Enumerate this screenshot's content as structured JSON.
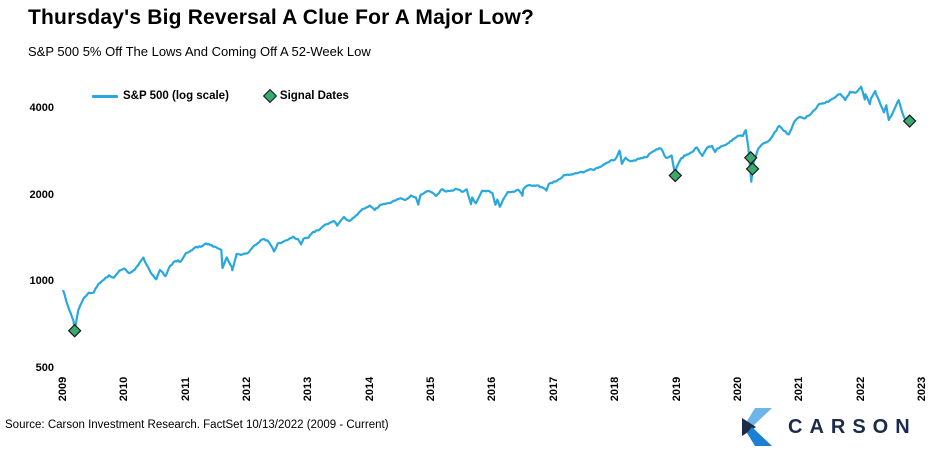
{
  "header": {
    "title": "Thursday's Big Reversal A Clue For A Major Low?",
    "subtitle": "S&P 500 5% Off The Lows And Coming Off A 52-Week Low"
  },
  "footer": {
    "source": "Source: Carson Investment Research. FactSet 10/13/2022 (2009 - Current)",
    "logo_text": "CARSON"
  },
  "colors": {
    "line": "#29A8E0",
    "signal": "#3BAA6E",
    "signal_edge": "#1a1a1a",
    "logo_navy": "#1B2B49",
    "logo_light_blue": "#6CB5E8",
    "logo_mid_blue": "#1B7FD4"
  },
  "chart_data": {
    "type": "line",
    "title": "Thursday's Big Reversal A Clue For A Major Low?",
    "subtitle": "S&P 500 5% Off The Lows And Coming Off A 52-Week Low",
    "y_scale": "log",
    "grid": false,
    "legend_position": "top-left",
    "xlim": [
      2009,
      2023
    ],
    "ylim": [
      500,
      5000
    ],
    "y_ticks": [
      4000,
      2000,
      1000,
      500
    ],
    "x_ticks": [
      2009,
      2010,
      2011,
      2012,
      2013,
      2014,
      2015,
      2016,
      2017,
      2018,
      2019,
      2020,
      2021,
      2022,
      2023
    ],
    "series": [
      {
        "name": "S&P 500 (log scale)",
        "points": [
          [
            2009.005,
            931.8
          ],
          [
            2009.08,
            825.9
          ],
          [
            2009.17,
            735.1
          ],
          [
            2009.19,
            676.5
          ],
          [
            2009.25,
            797.9
          ],
          [
            2009.33,
            872.8
          ],
          [
            2009.42,
            919.1
          ],
          [
            2009.5,
            919.3
          ],
          [
            2009.58,
            987.5
          ],
          [
            2009.67,
            1020.6
          ],
          [
            2009.75,
            1057.1
          ],
          [
            2009.83,
            1036.2
          ],
          [
            2009.92,
            1095.6
          ],
          [
            2010.0,
            1115.1
          ],
          [
            2010.08,
            1073.9
          ],
          [
            2010.17,
            1104.5
          ],
          [
            2010.25,
            1169.4
          ],
          [
            2010.31,
            1217.3
          ],
          [
            2010.33,
            1186.7
          ],
          [
            2010.42,
            1089.4
          ],
          [
            2010.5,
            1030.7
          ],
          [
            2010.52,
            1022.6
          ],
          [
            2010.58,
            1101.6
          ],
          [
            2010.67,
            1049.3
          ],
          [
            2010.75,
            1141.2
          ],
          [
            2010.83,
            1183.3
          ],
          [
            2010.92,
            1180.6
          ],
          [
            2011.0,
            1257.6
          ],
          [
            2011.08,
            1286.1
          ],
          [
            2011.17,
            1327.2
          ],
          [
            2011.25,
            1325.8
          ],
          [
            2011.33,
            1363.6
          ],
          [
            2011.42,
            1345.2
          ],
          [
            2011.5,
            1320.6
          ],
          [
            2011.58,
            1292.3
          ],
          [
            2011.6,
            1119.5
          ],
          [
            2011.67,
            1218.9
          ],
          [
            2011.75,
            1131.4
          ],
          [
            2011.76,
            1099.2
          ],
          [
            2011.83,
            1253.3
          ],
          [
            2011.92,
            1247.0
          ],
          [
            2012.0,
            1257.6
          ],
          [
            2012.08,
            1312.4
          ],
          [
            2012.17,
            1365.7
          ],
          [
            2012.25,
            1408.5
          ],
          [
            2012.33,
            1397.9
          ],
          [
            2012.42,
            1310.3
          ],
          [
            2012.44,
            1278.0
          ],
          [
            2012.5,
            1362.2
          ],
          [
            2012.58,
            1379.3
          ],
          [
            2012.67,
            1406.6
          ],
          [
            2012.75,
            1440.7
          ],
          [
            2012.83,
            1412.2
          ],
          [
            2012.88,
            1353.3
          ],
          [
            2012.92,
            1416.2
          ],
          [
            2013.0,
            1426.2
          ],
          [
            2013.08,
            1498.1
          ],
          [
            2013.17,
            1514.7
          ],
          [
            2013.25,
            1569.2
          ],
          [
            2013.33,
            1597.6
          ],
          [
            2013.42,
            1630.7
          ],
          [
            2013.47,
            1573.1
          ],
          [
            2013.5,
            1606.3
          ],
          [
            2013.58,
            1685.7
          ],
          [
            2013.67,
            1633.0
          ],
          [
            2013.75,
            1681.6
          ],
          [
            2013.83,
            1756.5
          ],
          [
            2013.92,
            1805.8
          ],
          [
            2014.0,
            1848.4
          ],
          [
            2014.08,
            1782.6
          ],
          [
            2014.17,
            1859.5
          ],
          [
            2014.25,
            1872.3
          ],
          [
            2014.33,
            1884.0
          ],
          [
            2014.42,
            1923.6
          ],
          [
            2014.5,
            1960.2
          ],
          [
            2014.58,
            1930.7
          ],
          [
            2014.67,
            2003.4
          ],
          [
            2014.75,
            1972.3
          ],
          [
            2014.79,
            1862.5
          ],
          [
            2014.83,
            2018.1
          ],
          [
            2014.92,
            2067.6
          ],
          [
            2015.0,
            2058.9
          ],
          [
            2015.08,
            1995.0
          ],
          [
            2015.17,
            2104.5
          ],
          [
            2015.25,
            2067.9
          ],
          [
            2015.33,
            2085.5
          ],
          [
            2015.42,
            2107.4
          ],
          [
            2015.5,
            2063.1
          ],
          [
            2015.58,
            2103.8
          ],
          [
            2015.65,
            1867.6
          ],
          [
            2015.67,
            1972.2
          ],
          [
            2015.73,
            1881.8
          ],
          [
            2015.75,
            1920.0
          ],
          [
            2015.83,
            2079.4
          ],
          [
            2015.92,
            2080.4
          ],
          [
            2016.0,
            2043.9
          ],
          [
            2016.05,
            1859.3
          ],
          [
            2016.08,
            1940.2
          ],
          [
            2016.12,
            1829.1
          ],
          [
            2016.17,
            1932.2
          ],
          [
            2016.25,
            2059.7
          ],
          [
            2016.33,
            2065.3
          ],
          [
            2016.42,
            2097.0
          ],
          [
            2016.49,
            2000.5
          ],
          [
            2016.5,
            2098.9
          ],
          [
            2016.58,
            2173.6
          ],
          [
            2016.67,
            2171.0
          ],
          [
            2016.75,
            2168.3
          ],
          [
            2016.83,
            2126.2
          ],
          [
            2016.88,
            2083.8
          ],
          [
            2016.92,
            2198.8
          ],
          [
            2017.0,
            2238.8
          ],
          [
            2017.08,
            2278.9
          ],
          [
            2017.17,
            2363.6
          ],
          [
            2017.25,
            2362.7
          ],
          [
            2017.33,
            2384.2
          ],
          [
            2017.42,
            2411.8
          ],
          [
            2017.5,
            2423.4
          ],
          [
            2017.58,
            2470.3
          ],
          [
            2017.67,
            2471.7
          ],
          [
            2017.75,
            2519.4
          ],
          [
            2017.83,
            2575.3
          ],
          [
            2017.92,
            2647.6
          ],
          [
            2018.0,
            2673.6
          ],
          [
            2018.07,
            2872.9
          ],
          [
            2018.08,
            2823.8
          ],
          [
            2018.11,
            2581.0
          ],
          [
            2018.17,
            2713.8
          ],
          [
            2018.25,
            2640.9
          ],
          [
            2018.33,
            2648.1
          ],
          [
            2018.42,
            2705.3
          ],
          [
            2018.5,
            2718.4
          ],
          [
            2018.58,
            2816.3
          ],
          [
            2018.67,
            2901.5
          ],
          [
            2018.72,
            2930.8
          ],
          [
            2018.75,
            2914.0
          ],
          [
            2018.83,
            2711.7
          ],
          [
            2018.92,
            2760.2
          ],
          [
            2018.98,
            2351.1
          ],
          [
            2019.0,
            2506.9
          ],
          [
            2019.08,
            2704.1
          ],
          [
            2019.17,
            2784.5
          ],
          [
            2019.25,
            2834.4
          ],
          [
            2019.33,
            2945.8
          ],
          [
            2019.42,
            2752.1
          ],
          [
            2019.5,
            2941.8
          ],
          [
            2019.58,
            2980.4
          ],
          [
            2019.63,
            2840.7
          ],
          [
            2019.67,
            2926.5
          ],
          [
            2019.75,
            2976.7
          ],
          [
            2019.83,
            3037.6
          ],
          [
            2019.92,
            3141.0
          ],
          [
            2020.0,
            3230.8
          ],
          [
            2020.08,
            3225.5
          ],
          [
            2020.13,
            3386.2
          ],
          [
            2020.17,
            2954.2
          ],
          [
            2020.22,
            2237.4
          ],
          [
            2020.25,
            2584.6
          ],
          [
            2020.33,
            2912.4
          ],
          [
            2020.42,
            3044.3
          ],
          [
            2020.5,
            3100.3
          ],
          [
            2020.58,
            3271.1
          ],
          [
            2020.67,
            3500.3
          ],
          [
            2020.75,
            3363.0
          ],
          [
            2020.83,
            3270.0
          ],
          [
            2020.92,
            3621.6
          ],
          [
            2021.0,
            3756.1
          ],
          [
            2021.08,
            3714.2
          ],
          [
            2021.17,
            3811.2
          ],
          [
            2021.25,
            3972.9
          ],
          [
            2021.33,
            4181.2
          ],
          [
            2021.42,
            4204.1
          ],
          [
            2021.5,
            4297.5
          ],
          [
            2021.58,
            4395.3
          ],
          [
            2021.67,
            4522.7
          ],
          [
            2021.75,
            4307.5
          ],
          [
            2021.83,
            4605.4
          ],
          [
            2021.92,
            4567.0
          ],
          [
            2022.0,
            4766.2
          ],
          [
            2022.01,
            4796.6
          ],
          [
            2022.07,
            4326.5
          ],
          [
            2022.08,
            4515.6
          ],
          [
            2022.15,
            4170.7
          ],
          [
            2022.17,
            4373.9
          ],
          [
            2022.24,
            4631.6
          ],
          [
            2022.25,
            4530.4
          ],
          [
            2022.33,
            4131.9
          ],
          [
            2022.38,
            3900.8
          ],
          [
            2022.42,
            4132.2
          ],
          [
            2022.46,
            3666.8
          ],
          [
            2022.5,
            3785.4
          ],
          [
            2022.58,
            4130.3
          ],
          [
            2022.62,
            4305.2
          ],
          [
            2022.67,
            3955.0
          ],
          [
            2022.75,
            3585.6
          ],
          [
            2022.78,
            3577.0
          ],
          [
            2022.79,
            3669.9
          ]
        ]
      }
    ],
    "signals": {
      "name": "Signal Dates",
      "points": [
        [
          2009.19,
          677
        ],
        [
          2018.98,
          2351
        ],
        [
          2020.21,
          2711
        ],
        [
          2020.24,
          2480
        ],
        [
          2022.8,
          3640
        ]
      ]
    }
  }
}
